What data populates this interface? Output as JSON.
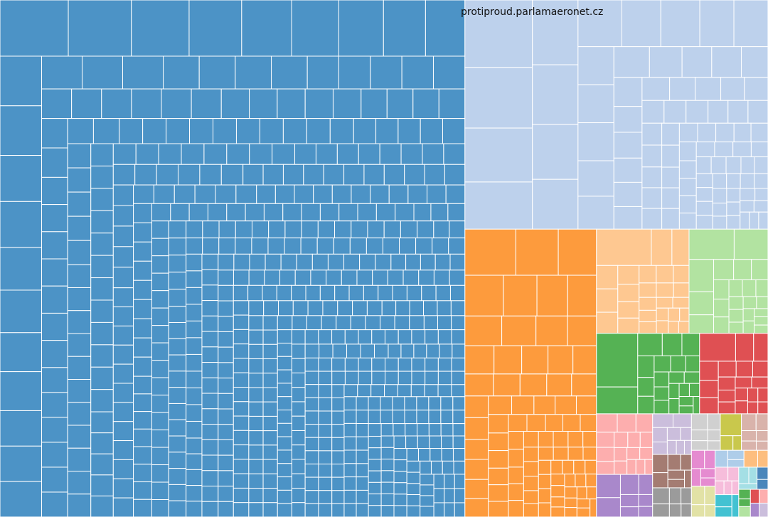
{
  "chart_data": {
    "type": "treemap",
    "title": "",
    "labels": [
      "protiproud.parlamaeronet.cz"
    ],
    "groups": [
      {
        "color": "#4c93c6",
        "weight": 0.5935,
        "leaf_weights": [
          13.0,
          12.0,
          11.0,
          10.0,
          9.5,
          9.0,
          8.5,
          8.0,
          7.5,
          7.0,
          7.0,
          6.5,
          6.5,
          6.0,
          6.0,
          5.5,
          5.5,
          5.0,
          5.0,
          5.0,
          4.5,
          4.5,
          4.5,
          4.0,
          4.0,
          4.0,
          4.0,
          3.5,
          3.5,
          3.5,
          3.5,
          3.5,
          3.0,
          3.0,
          3.0,
          3.0,
          3.0,
          3.0,
          2.8,
          2.8,
          2.8,
          2.8,
          2.8,
          2.6,
          2.6,
          2.6,
          2.6,
          2.6,
          2.6,
          2.4,
          2.4,
          2.4,
          2.4,
          2.4,
          2.4,
          2.4,
          2.2,
          2.2,
          2.2,
          2.2,
          2.2,
          2.2,
          2.2,
          2.2,
          2.0,
          2.0,
          2.0,
          2.0,
          2.0,
          2.0,
          2.0,
          2.0,
          2.0,
          2.0,
          1.9,
          1.9,
          1.9,
          1.9,
          1.9,
          1.9,
          1.9,
          1.9,
          1.9,
          1.9,
          1.8,
          1.8,
          1.8,
          1.8,
          1.8,
          1.8,
          1.8,
          1.8,
          1.8,
          1.8,
          1.8,
          1.7,
          1.7,
          1.7,
          1.7,
          1.7,
          1.7,
          1.7,
          1.7,
          1.7,
          1.7,
          1.7,
          1.7,
          1.6,
          1.6,
          1.6,
          1.6,
          1.6,
          1.6,
          1.6,
          1.6,
          1.6,
          1.6,
          1.6,
          1.6,
          1.6,
          1.5,
          1.5,
          1.5,
          1.5,
          1.5,
          1.5,
          1.5,
          1.5,
          1.5,
          1.5,
          1.5,
          1.5,
          1.5,
          1.5,
          1.4,
          1.4,
          1.4,
          1.4,
          1.4,
          1.4,
          1.4,
          1.4,
          1.4,
          1.4,
          1.4,
          1.4,
          1.4,
          1.4,
          1.4,
          1.4,
          1.3,
          1.3,
          1.3,
          1.3,
          1.3,
          1.3,
          1.3,
          1.3,
          1.3,
          1.3,
          1.3,
          1.3,
          1.3,
          1.3,
          1.3,
          1.3,
          1.3,
          1.3,
          1.2,
          1.2,
          1.2,
          1.2,
          1.2,
          1.2,
          1.2,
          1.2,
          1.2,
          1.2,
          1.2,
          1.2,
          1.2,
          1.2,
          1.2,
          1.2,
          1.2,
          1.2,
          1.2,
          1.2,
          1.1,
          1.1,
          1.1,
          1.1,
          1.1,
          1.1,
          1.1,
          1.1,
          1.1,
          1.1,
          1.1,
          1.1,
          1.1,
          1.1,
          1.1,
          1.1,
          1.1,
          1.1,
          1.1,
          1.1,
          1.1,
          1.1,
          1.0,
          1.0,
          1.0,
          1.0,
          1.0,
          1.0,
          1.0,
          1.0,
          1.0,
          1.0,
          1.0,
          1.0,
          1.0,
          1.0,
          1.0,
          1.0,
          1.0,
          1.0,
          1.0,
          1.0,
          1.0,
          1.0,
          1.0,
          1.0,
          1.0,
          0.95,
          0.95,
          0.95,
          0.95,
          0.95,
          0.95,
          0.95,
          0.95,
          0.95,
          0.95,
          0.95,
          0.95,
          0.95,
          0.95,
          0.95,
          0.95,
          0.95,
          0.95,
          0.95,
          0.95,
          0.95,
          0.95,
          0.95,
          0.95,
          0.95,
          0.95,
          0.95,
          0.95,
          0.9,
          0.9,
          0.9,
          0.9,
          0.9,
          0.9,
          0.9,
          0.9,
          0.9,
          0.9,
          0.9,
          0.9,
          0.9,
          0.9,
          0.9,
          0.9,
          0.9,
          0.9,
          0.9,
          0.9,
          0.9,
          0.9,
          0.9,
          0.9,
          0.9,
          0.9,
          0.9,
          0.9,
          0.9,
          0.9,
          0.85,
          0.85,
          0.85,
          0.85,
          0.85,
          0.85,
          0.85,
          0.85,
          0.85,
          0.85,
          0.85,
          0.85,
          0.85,
          0.85,
          0.85,
          0.85,
          0.85,
          0.85,
          0.85,
          0.85,
          0.85,
          0.85,
          0.85,
          0.85,
          0.85,
          0.85,
          0.85,
          0.85,
          0.85,
          0.85,
          0.85,
          0.85,
          0.85,
          0.8,
          0.8,
          0.8,
          0.8,
          0.8,
          0.8,
          0.8,
          0.8,
          0.8,
          0.8,
          0.8,
          0.8,
          0.8,
          0.8,
          0.8,
          0.8,
          0.8,
          0.8,
          0.8,
          0.8,
          0.8,
          0.8,
          0.8,
          0.8,
          0.8,
          0.8,
          0.8,
          0.8,
          0.8,
          0.8,
          0.8,
          0.8,
          0.8,
          0.8,
          0.8,
          0.8,
          0.75,
          0.75,
          0.75,
          0.75,
          0.75,
          0.75,
          0.75,
          0.75,
          0.75,
          0.75,
          0.75,
          0.75,
          0.75,
          0.75,
          0.75,
          0.75,
          0.75,
          0.75,
          0.75,
          0.75,
          0.75,
          0.75,
          0.75,
          0.75,
          0.75,
          0.75,
          0.75,
          0.75,
          0.75,
          0.75,
          0.75,
          0.75,
          0.75,
          0.75,
          0.75,
          0.75,
          0.75,
          0.75,
          0.75,
          0.75,
          0.7,
          0.7,
          0.7,
          0.7,
          0.7,
          0.7,
          0.7,
          0.7,
          0.7,
          0.7,
          0.7,
          0.7,
          0.7,
          0.7,
          0.7,
          0.7,
          0.7,
          0.7,
          0.7,
          0.7,
          0.7,
          0.7,
          0.7,
          0.7,
          0.7,
          0.7,
          0.7,
          0.7,
          0.7,
          0.7,
          0.7,
          0.7,
          0.7,
          0.7,
          0.7,
          0.7,
          0.7,
          0.7,
          0.7,
          0.7,
          0.7,
          0.7,
          0.7,
          0.7,
          0.65,
          0.65,
          0.65,
          0.65,
          0.65,
          0.65,
          0.65,
          0.65,
          0.65,
          0.65,
          0.65,
          0.65,
          0.65,
          0.65,
          0.65,
          0.65,
          0.65,
          0.65,
          0.65,
          0.65,
          0.65,
          0.65,
          0.65,
          0.65,
          0.65,
          0.65,
          0.65,
          0.65,
          0.65,
          0.65,
          0.65,
          0.65,
          0.65,
          0.65,
          0.65,
          0.65,
          0.65,
          0.65,
          0.65,
          0.65,
          0.65,
          0.65,
          0.65,
          0.65,
          0.65,
          0.65,
          0.65,
          0.65,
          0.6,
          0.6,
          0.6,
          0.6,
          0.6,
          0.6,
          0.6,
          0.6,
          0.6,
          0.6,
          0.6,
          0.6,
          0.6,
          0.6,
          0.6,
          0.6,
          0.6,
          0.6,
          0.6,
          0.6,
          0.6,
          0.6,
          0.6,
          0.6,
          0.6,
          0.6,
          0.6,
          0.6,
          0.6,
          0.6,
          0.6,
          0.6,
          0.6,
          0.6,
          0.6,
          0.6,
          0.6,
          0.6,
          0.6,
          0.6,
          0.6,
          0.6,
          0.6,
          0.6,
          0.6,
          0.6,
          0.6,
          0.6,
          0.6,
          0.6,
          0.55,
          0.55,
          0.55,
          0.55,
          0.55,
          0.55,
          0.55,
          0.55,
          0.55,
          0.55,
          0.55,
          0.55,
          0.55,
          0.55,
          0.55,
          0.55,
          0.55,
          0.55,
          0.55,
          0.55,
          0.55,
          0.55,
          0.55,
          0.55,
          0.55,
          0.55,
          0.55,
          0.55,
          0.55,
          0.55,
          0.55,
          0.55,
          0.55,
          0.55,
          0.55,
          0.55,
          0.55,
          0.55,
          0.55,
          0.55,
          0.55,
          0.55,
          0.55,
          0.55,
          0.55,
          0.55,
          0.55,
          0.55,
          0.55,
          0.55,
          0.55,
          0.55,
          0.55,
          0.55,
          0.5,
          0.5,
          0.5,
          0.5,
          0.5,
          0.5,
          0.5,
          0.5,
          0.5,
          0.5,
          0.5,
          0.5,
          0.5,
          0.5,
          0.5,
          0.5,
          0.5,
          0.5,
          0.5,
          0.5,
          0.5,
          0.5,
          0.5,
          0.5,
          0.5,
          0.5,
          0.5,
          0.5,
          0.5,
          0.5,
          0.5,
          0.5,
          0.5,
          0.5,
          0.5,
          0.5,
          0.5,
          0.5,
          0.5,
          0.5,
          0.5,
          0.5,
          0.5,
          0.5,
          0.5,
          0.5,
          0.5,
          0.5,
          0.5,
          0.5,
          0.5,
          0.5,
          0.5,
          0.5,
          0.5,
          0.5,
          0.5,
          0.5,
          0.5,
          0.5
        ]
      },
      {
        "color": "#bdd1ec",
        "weight": 0.1715,
        "leaf_weights": [
          10.0,
          9.0,
          8.0,
          7.0,
          6.5,
          6.0,
          5.5,
          5.0,
          4.5,
          4.0,
          4.0,
          3.5,
          3.5,
          3.0,
          3.0,
          3.0,
          2.8,
          2.6,
          2.4,
          2.2,
          2.0,
          2.0,
          1.8,
          1.8,
          1.6,
          1.6,
          1.5,
          1.5,
          1.4,
          1.4,
          1.3,
          1.3,
          1.2,
          1.2,
          1.1,
          1.1,
          1.1,
          1.0,
          1.0,
          1.0,
          0.95,
          0.95,
          0.9,
          0.9,
          0.9,
          0.85,
          0.85,
          0.8,
          0.8,
          0.8,
          0.75,
          0.75,
          0.75,
          0.7,
          0.7,
          0.7,
          0.65,
          0.65,
          0.65,
          0.6,
          0.6,
          0.6,
          0.6,
          0.55,
          0.55,
          0.55,
          0.55,
          0.5,
          0.5,
          0.5,
          0.5,
          0.5,
          0.5,
          0.45,
          0.45,
          0.45,
          0.45,
          0.45,
          0.4,
          0.4,
          0.4,
          0.4,
          0.4,
          0.4,
          0.35,
          0.35,
          0.35,
          0.35,
          0.35,
          0.35
        ]
      },
      {
        "color": "#fd9b3d",
        "weight": 0.0935,
        "leaf_weights": [
          6.0,
          5.0,
          4.5,
          4.0,
          3.5,
          3.2,
          3.0,
          2.8,
          2.6,
          2.4,
          2.2,
          2.1,
          2.0,
          1.9,
          1.8,
          1.7,
          1.6,
          1.5,
          1.5,
          1.4,
          1.4,
          1.3,
          1.3,
          1.2,
          1.2,
          1.15,
          1.1,
          1.1,
          1.05,
          1.0,
          1.0,
          0.95,
          0.95,
          0.9,
          0.9,
          0.85,
          0.85,
          0.8,
          0.8,
          0.8,
          0.75,
          0.75,
          0.7,
          0.7,
          0.7,
          0.65,
          0.65,
          0.65,
          0.6,
          0.6,
          0.6,
          0.6,
          0.55,
          0.55,
          0.55,
          0.55,
          0.5,
          0.5,
          0.5,
          0.5,
          0.5,
          0.45,
          0.45,
          0.45,
          0.45,
          0.45,
          0.4,
          0.4,
          0.4,
          0.4,
          0.4,
          0.4,
          0.35,
          0.35,
          0.35,
          0.35,
          0.35,
          0.35,
          0.3,
          0.3,
          0.3,
          0.3,
          0.3,
          0.3,
          0.3
        ]
      },
      {
        "color": "#fec891",
        "weight": 0.0238,
        "leaf_weights": [
          8.0,
          3.0,
          2.5,
          2.0,
          2.0,
          1.8,
          1.6,
          1.5,
          1.4,
          1.3,
          1.2,
          1.2,
          1.1,
          1.0,
          1.0,
          0.9,
          0.9,
          0.8,
          0.8,
          0.7,
          0.7,
          0.6,
          0.6,
          0.6,
          0.5,
          0.5,
          0.5
        ]
      },
      {
        "color": "#b2e3a1",
        "weight": 0.0203,
        "leaf_weights": [
          6.0,
          4.5,
          3.5,
          2.5,
          2.0,
          1.8,
          1.6,
          1.5,
          1.3,
          1.2,
          1.1,
          1.0,
          1.0,
          0.9,
          0.8,
          0.8,
          0.7,
          0.7,
          0.6,
          0.6,
          0.6,
          0.5,
          0.5,
          0.5
        ]
      },
      {
        "color": "#55b254",
        "weight": 0.0205,
        "leaf_weights": [
          10.0,
          5.0,
          2.5,
          2.0,
          1.8,
          1.6,
          1.4,
          1.3,
          1.2,
          1.1,
          1.0,
          1.0,
          0.9,
          0.9,
          0.8,
          0.8,
          0.7,
          0.7,
          0.6,
          0.6,
          0.6,
          0.5,
          0.5
        ]
      },
      {
        "color": "#df5053",
        "weight": 0.0136,
        "leaf_weights": [
          5.0,
          2.5,
          2.0,
          1.8,
          1.6,
          1.5,
          1.4,
          1.3,
          1.2,
          1.1,
          1.0,
          1.0,
          0.9,
          0.9,
          0.8,
          0.8,
          0.7,
          0.7,
          0.6,
          0.6
        ]
      },
      {
        "color": "#fdaeae",
        "weight": 0.0084,
        "leaf_weights": [
          2.0,
          1.8,
          1.6,
          1.4,
          1.3,
          1.2,
          1.1,
          1.0,
          1.0,
          0.9,
          0.9,
          0.8,
          0.8,
          0.7,
          0.7,
          0.6
        ]
      },
      {
        "color": "#a988cb",
        "weight": 0.0059,
        "leaf_weights": [
          3.0,
          2.5,
          2.0,
          1.5,
          1.2,
          1.0,
          0.9,
          0.8
        ]
      },
      {
        "color": "#cbbedc",
        "weight": 0.0039,
        "leaf_weights": [
          2.0,
          1.8,
          1.5,
          1.3,
          1.2,
          1.0,
          0.9,
          0.8,
          0.7
        ]
      },
      {
        "color": "#a47c72",
        "weight": 0.0032,
        "leaf_weights": [
          1.8,
          1.5,
          1.3,
          1.1,
          1.0,
          0.9,
          0.8
        ]
      },
      {
        "color": "#9b9b9b",
        "weight": 0.0028,
        "leaf_weights": [
          1.6,
          1.3,
          1.1,
          1.0,
          0.9,
          0.8
        ]
      },
      {
        "color": "#d0d0d0",
        "weight": 0.0026,
        "leaf_weights": [
          1.5,
          1.2,
          1.0,
          0.9,
          0.8,
          0.7
        ]
      },
      {
        "color": "#c9c84c",
        "weight": 0.0019,
        "leaf_weights": [
          3.0,
          1.2,
          0.8
        ]
      },
      {
        "color": "#d9b3ab",
        "weight": 0.0024,
        "leaf_weights": [
          1.6,
          1.3,
          1.0,
          0.9,
          0.8,
          0.7
        ]
      },
      {
        "color": "#e58bd0",
        "weight": 0.0021,
        "leaf_weights": [
          1.6,
          1.3,
          1.1,
          0.9,
          0.8
        ]
      },
      {
        "color": "#e2e2a6",
        "weight": 0.0018,
        "leaf_weights": [
          1.5,
          1.2,
          1.0,
          0.8
        ]
      },
      {
        "color": "#aecde9",
        "weight": 0.0012,
        "leaf_weights": [
          1.4,
          1.0,
          0.8
        ]
      },
      {
        "color": "#fdbe7e",
        "weight": 0.001,
        "leaf_weights": [
          1.2,
          0.9
        ]
      },
      {
        "color": "#f6bddb",
        "weight": 0.0016,
        "leaf_weights": [
          1.3,
          1.1,
          0.9,
          0.8,
          0.7
        ]
      },
      {
        "color": "#43c2d2",
        "weight": 0.0013,
        "leaf_weights": [
          1.2,
          1.0,
          0.9
        ]
      },
      {
        "color": "#a4dfe5",
        "weight": 0.001,
        "leaf_weights": [
          1.1,
          0.9,
          0.7
        ]
      },
      {
        "color": "#4a86bb",
        "weight": 0.0006,
        "leaf_weights": [
          1.0,
          0.8
        ]
      },
      {
        "color": "#55b254",
        "weight": 0.0005,
        "leaf_weights": [
          1.0,
          0.8
        ]
      },
      {
        "color": "#b2e3a1",
        "weight": 0.0003,
        "leaf_weights": [
          1.0
        ]
      },
      {
        "color": "#df5053",
        "weight": 0.0003,
        "leaf_weights": [
          1.0
        ]
      },
      {
        "color": "#fdaeae",
        "weight": 0.0003,
        "leaf_weights": [
          1.0
        ]
      },
      {
        "color": "#a988cb",
        "weight": 0.0003,
        "leaf_weights": [
          1.0
        ]
      },
      {
        "color": "#cbbedc",
        "weight": 0.0003,
        "leaf_weights": [
          1.0
        ]
      }
    ]
  }
}
